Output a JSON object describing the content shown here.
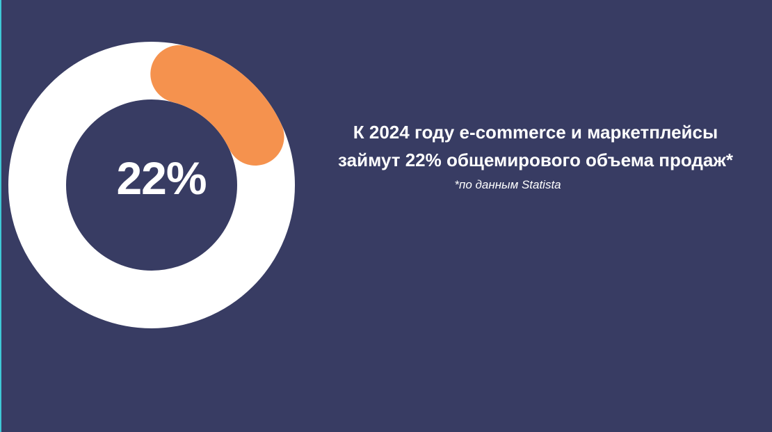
{
  "chart_data": {
    "type": "pie",
    "values": [
      22,
      78
    ],
    "data_label": "22%",
    "colors": {
      "highlight": "#f5924e",
      "rest": "#ffffff",
      "background": "#383c63"
    }
  },
  "headline": {
    "line1": "К 2024 году e-commerce и маркетплейсы",
    "line2": "займут 22% общемирового объема продаж*"
  },
  "footnote": "*по данным Statista"
}
